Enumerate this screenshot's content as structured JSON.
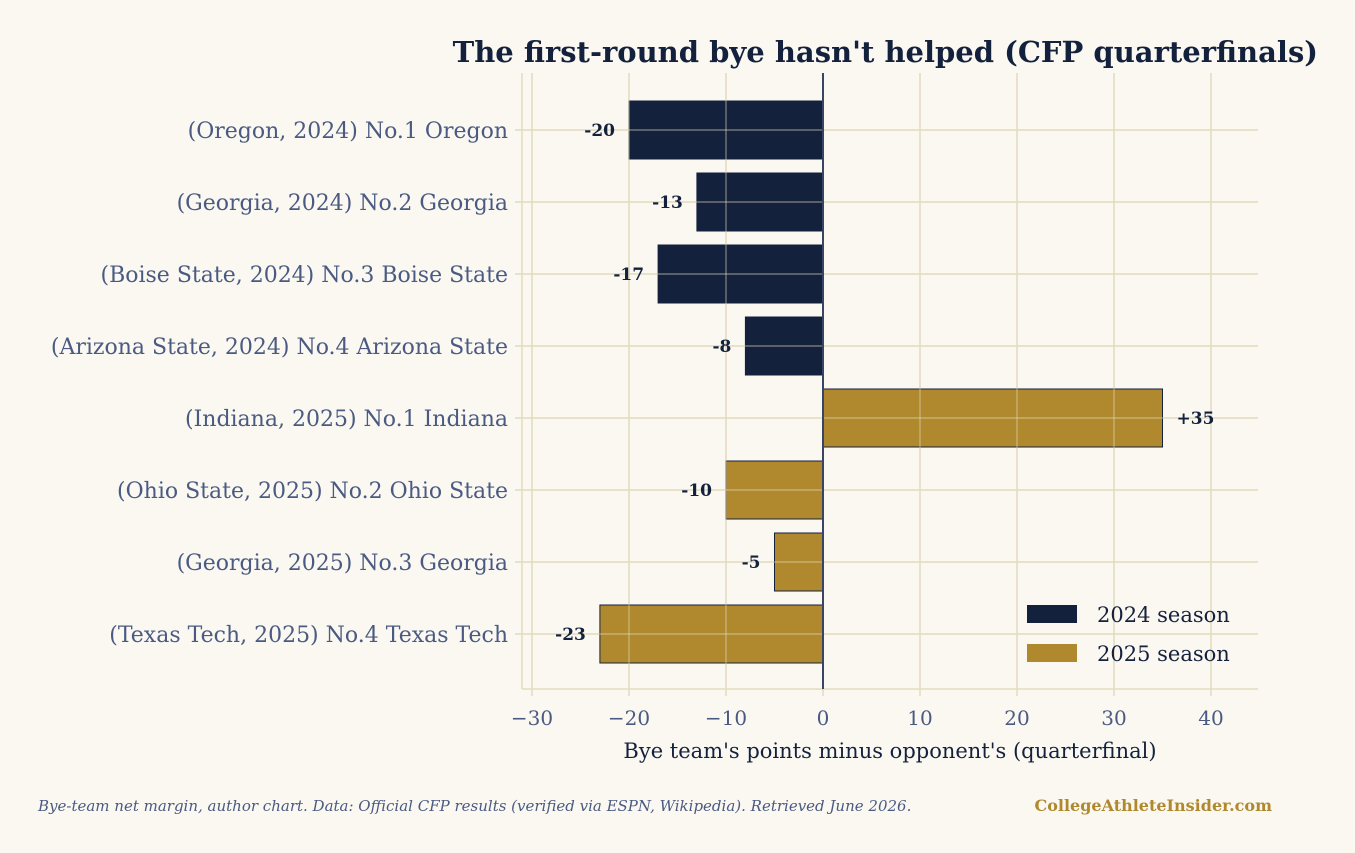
{
  "chart_data": {
    "type": "bar",
    "orientation": "horizontal",
    "title": "The first-round bye hasn't helped (CFP quarterfinals)",
    "xlabel": "Bye team's points minus opponent's (quarterfinal)",
    "ylabel": "",
    "xlim": [
      -31,
      45
    ],
    "xticks": [
      -30,
      -20,
      -10,
      0,
      10,
      20,
      30,
      40
    ],
    "xtick_labels": [
      "−30",
      "−20",
      "−10",
      "0",
      "10",
      "20",
      "30",
      "40"
    ],
    "grid": true,
    "legend_position": "bottom-right",
    "categories": [
      "(Oregon, 2024)  No.1 Oregon",
      "(Georgia, 2024)  No.2 Georgia",
      "(Boise State, 2024)  No.3 Boise State",
      "(Arizona State, 2024)  No.4 Arizona State",
      "(Indiana, 2025)  No.1 Indiana",
      "(Ohio State, 2025)  No.2 Ohio State",
      "(Georgia, 2025)  No.3 Georgia",
      "(Texas Tech, 2025)  No.4 Texas Tech"
    ],
    "values": [
      -20,
      -13,
      -17,
      -8,
      35,
      -10,
      -5,
      -23
    ],
    "value_labels": [
      "-20",
      "-13",
      "-17",
      "-8",
      "+35",
      "-10",
      "-5",
      "-23"
    ],
    "series_index": [
      0,
      0,
      0,
      0,
      1,
      1,
      1,
      1
    ],
    "series": [
      {
        "name": "2024 season",
        "color": "#14213d"
      },
      {
        "name": "2025 season",
        "color": "#b0892e"
      }
    ]
  },
  "footer": {
    "note": "Bye-team net margin, author chart.  Data: Official CFP results (verified via ESPN, Wikipedia). Retrieved June 2026.",
    "brand": "CollegeAthleteInsider.com",
    "brand_color": "#b0892e"
  },
  "colors": {
    "background": "#faf8f0",
    "grid": "#e3dcc0",
    "zero_line": "#3a4566",
    "text_dark": "#14213d",
    "text_muted": "#4a5a82"
  }
}
